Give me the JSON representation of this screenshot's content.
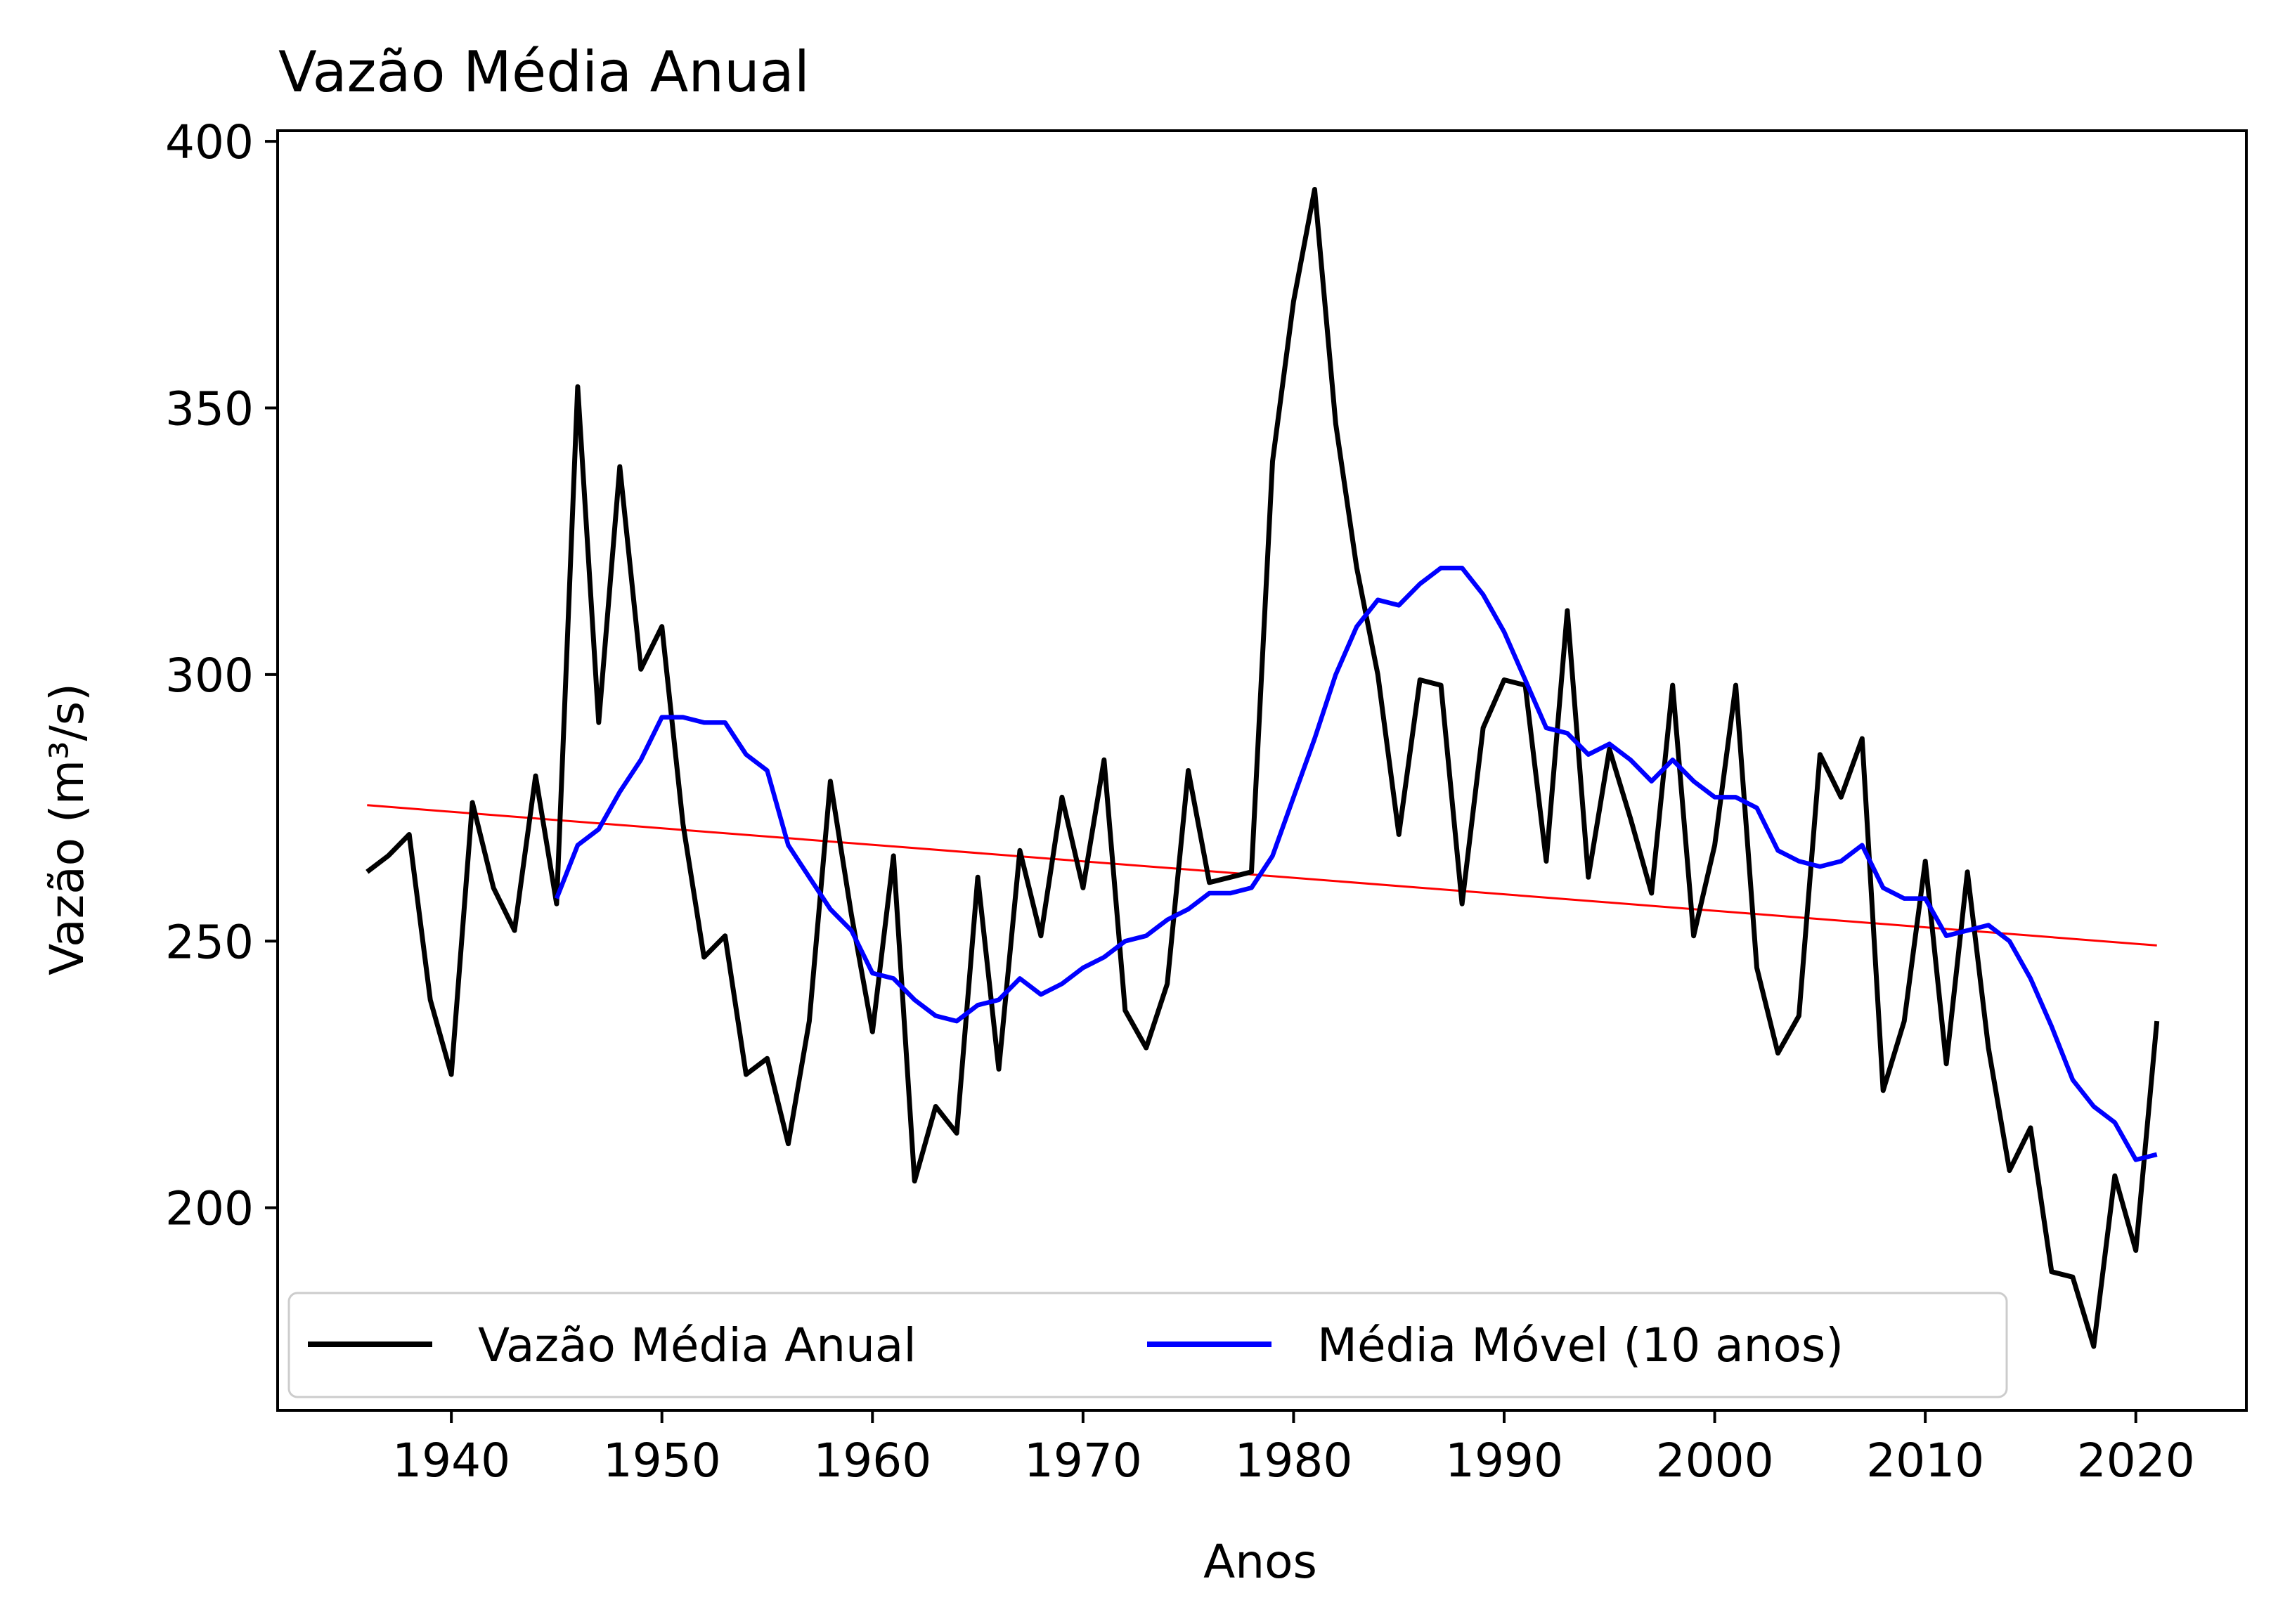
{
  "chart_data": {
    "type": "line",
    "title": "Vazão Média Anual",
    "xlabel": "Anos",
    "ylabel": "Vazão (m³/s)",
    "xlim": [
      1931.75,
      2025.25
    ],
    "ylim": [
      162,
      402
    ],
    "xticks": [
      1940,
      1950,
      1960,
      1970,
      1980,
      1990,
      2000,
      2010,
      2020
    ],
    "yticks": [
      200,
      250,
      300,
      350,
      400
    ],
    "grid": false,
    "legend_position": "bottom-left",
    "colors": {
      "annual": "#000000",
      "moving_average": "#0000ff",
      "trend": "#ff0000"
    },
    "series": [
      {
        "name": "Vazão Média Anual",
        "x": [
          1936,
          1937,
          1938,
          1939,
          1940,
          1941,
          1942,
          1943,
          1944,
          1945,
          1946,
          1947,
          1948,
          1949,
          1950,
          1951,
          1952,
          1953,
          1954,
          1955,
          1956,
          1957,
          1958,
          1959,
          1960,
          1961,
          1962,
          1963,
          1964,
          1965,
          1966,
          1967,
          1968,
          1969,
          1970,
          1971,
          1972,
          1973,
          1974,
          1975,
          1976,
          1977,
          1978,
          1979,
          1980,
          1981,
          1982,
          1983,
          1984,
          1985,
          1986,
          1987,
          1988,
          1989,
          1990,
          1991,
          1992,
          1993,
          1994,
          1995,
          1996,
          1997,
          1998,
          1999,
          2000,
          2001,
          2002,
          2003,
          2004,
          2005,
          2006,
          2007,
          2008,
          2009,
          2010,
          2011,
          2012,
          2013,
          2014,
          2015,
          2016,
          2017,
          2018,
          2019,
          2020,
          2021
        ],
        "values": [
          263,
          266,
          270,
          239,
          225,
          276,
          260,
          252,
          281,
          257,
          354,
          291,
          339,
          301,
          309,
          272,
          247,
          251,
          225,
          228,
          212,
          235,
          280,
          255,
          233,
          266,
          205,
          219,
          214,
          262,
          226,
          267,
          251,
          277,
          260,
          284,
          237,
          230,
          242,
          282,
          261,
          262,
          263,
          340,
          370,
          391,
          347,
          320,
          300,
          270,
          299,
          298,
          257,
          290,
          299,
          298,
          265,
          312,
          262,
          286,
          273,
          259,
          298,
          251,
          268,
          298,
          245,
          229,
          236,
          285,
          277,
          288,
          222,
          235,
          265,
          227,
          263,
          230,
          207,
          215,
          188,
          187,
          174,
          206,
          192,
          235
        ]
      },
      {
        "name": "Média Móvel (10 anos)",
        "x": [
          1945,
          1946,
          1947,
          1948,
          1949,
          1950,
          1951,
          1952,
          1953,
          1954,
          1955,
          1956,
          1957,
          1958,
          1959,
          1960,
          1961,
          1962,
          1963,
          1964,
          1965,
          1966,
          1967,
          1968,
          1969,
          1970,
          1971,
          1972,
          1973,
          1974,
          1975,
          1976,
          1977,
          1978,
          1979,
          1980,
          1981,
          1982,
          1983,
          1984,
          1985,
          1986,
          1987,
          1988,
          1989,
          1990,
          1991,
          1992,
          1993,
          1994,
          1995,
          1996,
          1997,
          1998,
          1999,
          2000,
          2001,
          2002,
          2003,
          2004,
          2005,
          2006,
          2007,
          2008,
          2009,
          2010,
          2011,
          2012,
          2013,
          2014,
          2015,
          2016,
          2017,
          2018,
          2019,
          2020,
          2021
        ],
        "values": [
          258,
          268,
          271,
          278,
          284,
          292,
          292,
          291,
          291,
          285,
          282,
          268,
          262,
          256,
          252,
          244,
          243,
          239,
          236,
          235,
          238,
          239,
          243,
          240,
          242,
          245,
          247,
          250,
          251,
          254,
          256,
          259,
          259,
          260,
          266,
          277,
          288,
          300,
          309,
          314,
          313,
          317,
          320,
          320,
          315,
          308,
          299,
          290,
          289,
          285,
          287,
          284,
          280,
          284,
          280,
          277,
          277,
          275,
          267,
          265,
          264,
          265,
          268,
          260,
          258,
          258,
          251,
          252,
          253,
          250,
          243,
          234,
          224,
          219,
          216,
          209,
          210
        ]
      },
      {
        "name": "",
        "x": [
          1936,
          2021
        ],
        "values": [
          275.5,
          249.2
        ]
      }
    ]
  }
}
